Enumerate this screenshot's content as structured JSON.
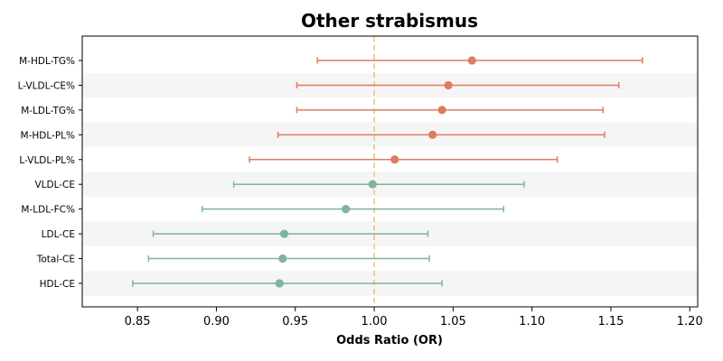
{
  "chart_data": {
    "type": "forest",
    "title": "Other strabismus",
    "xlabel": "Odds Ratio (OR)",
    "ylabel": "",
    "xlim": [
      0.815,
      1.205
    ],
    "xticks": [
      0.85,
      0.9,
      0.95,
      1.0,
      1.05,
      1.1,
      1.15,
      1.2
    ],
    "xtick_labels": [
      "0.85",
      "0.90",
      "0.95",
      "1.00",
      "1.05",
      "1.10",
      "1.15",
      "1.20"
    ],
    "reference_line": 1.0,
    "grid": false,
    "alternating_row_shading": true,
    "colors": {
      "positive": "#e07b5f",
      "negative": "#7fb49a",
      "reference": "#f0c27b",
      "row_band": "#f5f5f5"
    },
    "rows": [
      {
        "label": "M-HDL-TG%",
        "or": 1.062,
        "lo": 0.964,
        "hi": 1.17
      },
      {
        "label": "L-VLDL-CE%",
        "or": 1.047,
        "lo": 0.951,
        "hi": 1.155
      },
      {
        "label": "M-LDL-TG%",
        "or": 1.043,
        "lo": 0.951,
        "hi": 1.145
      },
      {
        "label": "M-HDL-PL%",
        "or": 1.037,
        "lo": 0.939,
        "hi": 1.146
      },
      {
        "label": "L-VLDL-PL%",
        "or": 1.013,
        "lo": 0.921,
        "hi": 1.116
      },
      {
        "label": "VLDL-CE",
        "or": 0.999,
        "lo": 0.911,
        "hi": 1.095
      },
      {
        "label": "M-LDL-FC%",
        "or": 0.982,
        "lo": 0.891,
        "hi": 1.082
      },
      {
        "label": "LDL-CE",
        "or": 0.943,
        "lo": 0.86,
        "hi": 1.034
      },
      {
        "label": "Total-CE",
        "or": 0.942,
        "lo": 0.857,
        "hi": 1.035
      },
      {
        "label": "HDL-CE",
        "or": 0.94,
        "lo": 0.847,
        "hi": 1.043
      }
    ]
  }
}
